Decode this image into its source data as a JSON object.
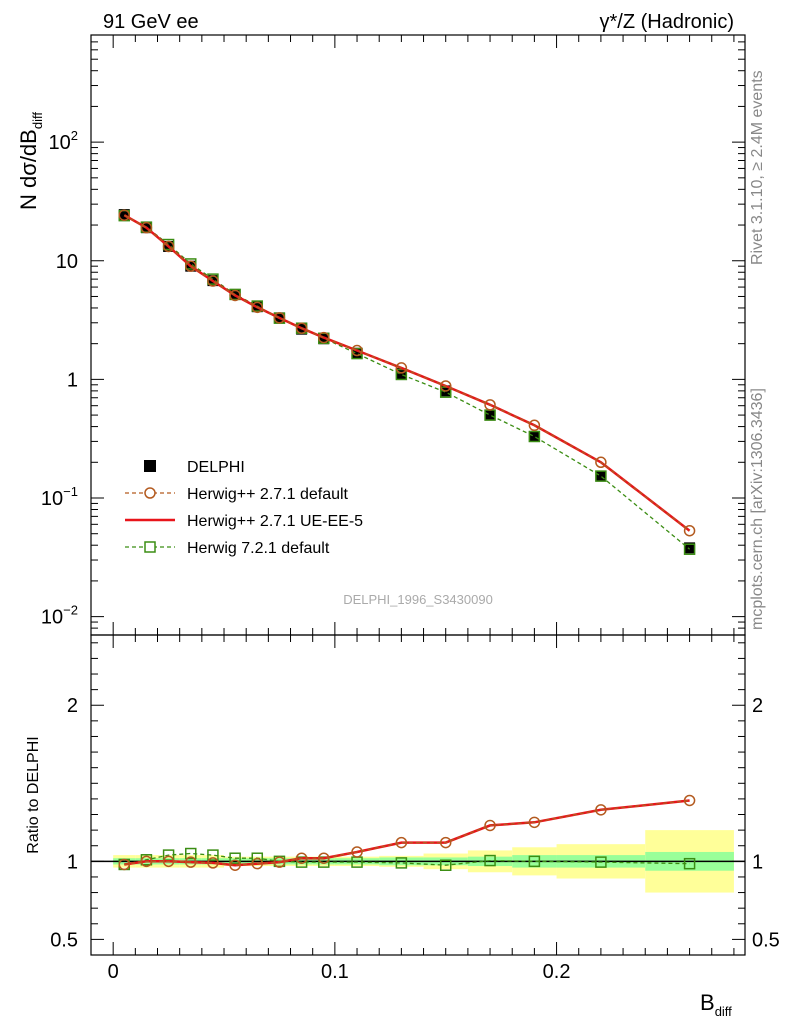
{
  "header": {
    "left": "91 GeV ee",
    "right": "γ*/Z (Hadronic)"
  },
  "side_text": {
    "rivet": "Rivet 3.1.10, ≥ 2.4M events",
    "mcplots": "mcplots.cern.ch [arXiv:1306.3436]"
  },
  "watermark": "DELPHI_1996_S3430090",
  "chart_data": [
    {
      "type": "line",
      "panel": "main",
      "ylabel_main": "N dσ/dB",
      "ylabel_sub": "diff",
      "yscale": "log",
      "ylim": [
        0.007,
        800
      ],
      "xlim": [
        -0.01,
        0.285
      ],
      "y_ticks": [
        {
          "value": 0.01,
          "base": "10",
          "exp": "−2"
        },
        {
          "value": 0.1,
          "base": "10",
          "exp": "−1"
        },
        {
          "value": 1,
          "base": "1",
          "exp": ""
        },
        {
          "value": 10,
          "base": "10",
          "exp": ""
        },
        {
          "value": 100,
          "base": "10",
          "exp": "2"
        }
      ],
      "legend_position": "middle-left",
      "x": [
        0.005,
        0.015,
        0.025,
        0.035,
        0.045,
        0.055,
        0.065,
        0.075,
        0.085,
        0.095,
        0.11,
        0.13,
        0.15,
        0.17,
        0.19,
        0.22,
        0.26
      ],
      "series": [
        {
          "name": "DELPHI",
          "style": "data",
          "color": "#000000",
          "values": [
            24.5,
            19.0,
            13.2,
            9.0,
            6.8,
            5.2,
            4.1,
            3.3,
            2.65,
            2.2,
            1.66,
            1.12,
            0.8,
            0.5,
            0.33,
            0.153,
            0.038
          ]
        },
        {
          "name": "Herwig++ 2.7.1 default",
          "style": "circle-dashed",
          "color": "#b35a1f",
          "values": [
            24.2,
            19.0,
            13.2,
            9.0,
            6.75,
            5.1,
            4.05,
            3.3,
            2.7,
            2.25,
            1.75,
            1.25,
            0.88,
            0.61,
            0.41,
            0.2,
            0.053
          ]
        },
        {
          "name": "Herwig++ 2.7.1 UE-EE-5",
          "style": "solid",
          "color": "#e8141a",
          "values": [
            24.2,
            19.0,
            13.2,
            9.0,
            6.75,
            5.1,
            4.05,
            3.3,
            2.7,
            2.25,
            1.75,
            1.25,
            0.88,
            0.61,
            0.41,
            0.2,
            0.053
          ]
        },
        {
          "name": "Herwig 7.2.1 default",
          "style": "square-dashed",
          "color": "#3b8d13",
          "values": [
            24.0,
            19.2,
            13.7,
            9.4,
            7.0,
            5.2,
            4.15,
            3.28,
            2.7,
            2.22,
            1.65,
            1.1,
            0.78,
            0.5,
            0.33,
            0.153,
            0.037
          ]
        }
      ]
    },
    {
      "type": "line",
      "panel": "ratio",
      "ylabel": "Ratio to DELPHI",
      "xlabel_main": "B",
      "xlabel_sub": "diff",
      "ylim": [
        0.4,
        2.45
      ],
      "x_ticks": [
        {
          "value": 0,
          "label": "0"
        },
        {
          "value": 0.1,
          "label": "0.1"
        },
        {
          "value": 0.2,
          "label": "0.2"
        }
      ],
      "y_ticks": [
        {
          "value": 0.5,
          "label": "0.5"
        },
        {
          "value": 1,
          "label": "1"
        },
        {
          "value": 2,
          "label": "2"
        }
      ],
      "bands": [
        {
          "x0": 0.0,
          "x1": 0.01,
          "stat": 0.02,
          "tot": 0.04
        },
        {
          "x0": 0.01,
          "x1": 0.02,
          "stat": 0.02,
          "tot": 0.04
        },
        {
          "x0": 0.02,
          "x1": 0.03,
          "stat": 0.02,
          "tot": 0.04
        },
        {
          "x0": 0.03,
          "x1": 0.04,
          "stat": 0.02,
          "tot": 0.04
        },
        {
          "x0": 0.04,
          "x1": 0.05,
          "stat": 0.02,
          "tot": 0.04
        },
        {
          "x0": 0.05,
          "x1": 0.06,
          "stat": 0.02,
          "tot": 0.03
        },
        {
          "x0": 0.06,
          "x1": 0.07,
          "stat": 0.02,
          "tot": 0.03
        },
        {
          "x0": 0.07,
          "x1": 0.08,
          "stat": 0.02,
          "tot": 0.03
        },
        {
          "x0": 0.08,
          "x1": 0.09,
          "stat": 0.02,
          "tot": 0.03
        },
        {
          "x0": 0.09,
          "x1": 0.1,
          "stat": 0.02,
          "tot": 0.03
        },
        {
          "x0": 0.1,
          "x1": 0.12,
          "stat": 0.02,
          "tot": 0.03
        },
        {
          "x0": 0.12,
          "x1": 0.14,
          "stat": 0.025,
          "tot": 0.035
        },
        {
          "x0": 0.14,
          "x1": 0.16,
          "stat": 0.025,
          "tot": 0.05
        },
        {
          "x0": 0.16,
          "x1": 0.18,
          "stat": 0.03,
          "tot": 0.07
        },
        {
          "x0": 0.18,
          "x1": 0.2,
          "stat": 0.04,
          "tot": 0.09
        },
        {
          "x0": 0.2,
          "x1": 0.24,
          "stat": 0.04,
          "tot": 0.11
        },
        {
          "x0": 0.24,
          "x1": 0.28,
          "stat": 0.06,
          "tot": 0.2
        }
      ],
      "x": [
        0.005,
        0.015,
        0.025,
        0.035,
        0.045,
        0.055,
        0.065,
        0.075,
        0.085,
        0.095,
        0.11,
        0.13,
        0.15,
        0.17,
        0.19,
        0.22,
        0.26
      ],
      "series": [
        {
          "name": "Herwig++ 2.7.1 default",
          "style": "circle-dashed",
          "color": "#b35a1f",
          "values": [
            0.98,
            1.0,
            1.0,
            0.995,
            0.99,
            0.975,
            0.985,
            0.995,
            1.02,
            1.02,
            1.06,
            1.12,
            1.12,
            1.23,
            1.25,
            1.33,
            1.39
          ]
        },
        {
          "name": "Herwig++ 2.7.1 UE-EE-5",
          "style": "solid",
          "color": "#e8141a",
          "values": [
            0.98,
            1.0,
            1.0,
            0.995,
            0.99,
            0.975,
            0.985,
            0.995,
            1.02,
            1.02,
            1.06,
            1.12,
            1.12,
            1.23,
            1.25,
            1.33,
            1.39
          ]
        },
        {
          "name": "Herwig 7.2.1 default",
          "style": "square-dashed",
          "color": "#3b8d13",
          "values": [
            0.98,
            1.01,
            1.04,
            1.05,
            1.04,
            1.02,
            1.02,
            1.0,
            0.995,
            0.995,
            0.995,
            0.99,
            0.975,
            1.005,
            1.0,
            0.995,
            0.985
          ]
        }
      ]
    }
  ]
}
